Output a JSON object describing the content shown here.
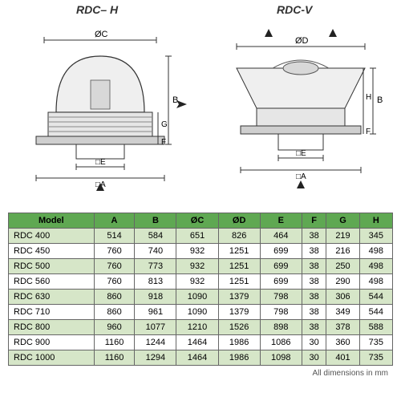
{
  "titles": {
    "h": "RDC– H",
    "v": "RDC-V"
  },
  "footnote": "All dimensions in mm",
  "table": {
    "header_bg": "#5fa852",
    "row_even_bg": "#d6e6c8",
    "row_odd_bg": "#ffffff",
    "border_color": "#666666",
    "font_size": 11,
    "columns": [
      "Model",
      "A",
      "B",
      "ØC",
      "ØD",
      "E",
      "F",
      "G",
      "H"
    ],
    "rows": [
      [
        "RDC 400",
        "514",
        "584",
        "651",
        "826",
        "464",
        "38",
        "219",
        "345"
      ],
      [
        "RDC 450",
        "760",
        "740",
        "932",
        "1251",
        "699",
        "38",
        "216",
        "498"
      ],
      [
        "RDC 500",
        "760",
        "773",
        "932",
        "1251",
        "699",
        "38",
        "250",
        "498"
      ],
      [
        "RDC 560",
        "760",
        "813",
        "932",
        "1251",
        "699",
        "38",
        "290",
        "498"
      ],
      [
        "RDC 630",
        "860",
        "918",
        "1090",
        "1379",
        "798",
        "38",
        "306",
        "544"
      ],
      [
        "RDC 710",
        "860",
        "961",
        "1090",
        "1379",
        "798",
        "38",
        "349",
        "544"
      ],
      [
        "RDC 800",
        "960",
        "1077",
        "1210",
        "1526",
        "898",
        "38",
        "378",
        "588"
      ],
      [
        "RDC 900",
        "1160",
        "1244",
        "1464",
        "1986",
        "1086",
        "30",
        "360",
        "735"
      ],
      [
        "RDC 1000",
        "1160",
        "1294",
        "1464",
        "1986",
        "1098",
        "30",
        "401",
        "735"
      ]
    ]
  },
  "diagram_style": {
    "stroke": "#333333",
    "fill": "#e8e8e8",
    "hatch": "#888888",
    "arrow_fill": "#222222",
    "label_font_size": 11
  },
  "labels": {
    "h": {
      "OC": "ØC",
      "B": "B",
      "G": "G",
      "F": "F",
      "E": "□E",
      "A": "□A"
    },
    "v": {
      "OD": "ØD",
      "B": "B",
      "H": "H",
      "F": "F",
      "E": "□E",
      "A": "□A"
    }
  }
}
